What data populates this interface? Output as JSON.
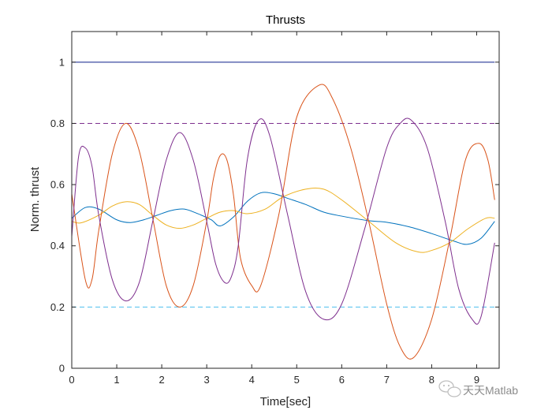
{
  "chart_data": {
    "type": "line",
    "title": "Thrusts",
    "xlabel": "Time[sec]",
    "ylabel": "Norm. thrust",
    "xlim": [
      0,
      9.5
    ],
    "ylim": [
      0,
      1.1
    ],
    "xticks": [
      "0",
      "1",
      "2",
      "3",
      "4",
      "5",
      "6",
      "7",
      "8",
      "9"
    ],
    "yticks": [
      "0",
      "0.2",
      "0.4",
      "0.6",
      "0.8",
      "1"
    ],
    "grid": false,
    "reference_lines": [
      {
        "y": 1.0,
        "color": "#0c1f8a",
        "style": "solid"
      },
      {
        "y": 0.8,
        "color": "#7e2f8e",
        "style": "dashed"
      },
      {
        "y": 0.2,
        "color": "#4dbeee",
        "style": "dashed"
      }
    ],
    "series": [
      {
        "color": "#0072bd",
        "x": [
          0,
          0.3,
          0.6,
          1.0,
          1.3,
          1.6,
          1.9,
          2.2,
          2.5,
          2.8,
          3.1,
          3.3,
          3.6,
          3.9,
          4.2,
          4.5,
          4.8,
          5.2,
          5.6,
          6.0,
          6.6,
          7.0,
          7.5,
          8.0,
          8.5,
          8.8,
          9.1,
          9.4
        ],
        "y": [
          0.49,
          0.525,
          0.52,
          0.485,
          0.476,
          0.485,
          0.5,
          0.515,
          0.52,
          0.505,
          0.485,
          0.465,
          0.495,
          0.545,
          0.573,
          0.57,
          0.555,
          0.535,
          0.51,
          0.497,
          0.482,
          0.477,
          0.462,
          0.44,
          0.415,
          0.405,
          0.425,
          0.48
        ]
      },
      {
        "color": "#edb120",
        "x": [
          0,
          0.2,
          0.6,
          0.9,
          1.2,
          1.5,
          1.8,
          2.1,
          2.4,
          2.7,
          3.0,
          3.3,
          3.6,
          3.9,
          4.3,
          4.7,
          5.2,
          5.6,
          6.0,
          6.6,
          7.2,
          7.7,
          8.0,
          8.4,
          8.8,
          9.2,
          9.4
        ],
        "y": [
          0.48,
          0.475,
          0.5,
          0.53,
          0.544,
          0.535,
          0.5,
          0.468,
          0.457,
          0.468,
          0.49,
          0.51,
          0.515,
          0.505,
          0.52,
          0.56,
          0.585,
          0.585,
          0.55,
          0.48,
          0.41,
          0.38,
          0.385,
          0.41,
          0.455,
          0.49,
          0.49
        ]
      },
      {
        "color": "#d95319",
        "x": [
          0,
          0.3,
          0.45,
          0.6,
          0.9,
          1.2,
          1.5,
          1.8,
          2.1,
          2.4,
          2.7,
          3.0,
          3.15,
          3.3,
          3.45,
          3.6,
          3.75,
          4.0,
          4.2,
          4.6,
          5.0,
          5.5,
          5.8,
          6.2,
          6.6,
          7.0,
          7.3,
          7.6,
          8.0,
          8.4,
          8.75,
          9.05,
          9.25,
          9.4
        ],
        "y": [
          0.57,
          0.29,
          0.29,
          0.45,
          0.7,
          0.8,
          0.71,
          0.49,
          0.27,
          0.2,
          0.27,
          0.48,
          0.62,
          0.695,
          0.68,
          0.56,
          0.36,
          0.27,
          0.27,
          0.5,
          0.82,
          0.925,
          0.88,
          0.72,
          0.48,
          0.21,
          0.07,
          0.035,
          0.16,
          0.42,
          0.68,
          0.735,
          0.68,
          0.55
        ]
      },
      {
        "color": "#7e2f8e",
        "x": [
          0,
          0.15,
          0.3,
          0.45,
          0.6,
          0.9,
          1.2,
          1.5,
          1.8,
          2.1,
          2.4,
          2.7,
          3.0,
          3.2,
          3.4,
          3.55,
          3.7,
          3.9,
          4.15,
          4.4,
          4.8,
          5.2,
          5.6,
          6.0,
          6.5,
          7.0,
          7.3,
          7.55,
          7.9,
          8.3,
          8.6,
          8.9,
          9.1,
          9.4
        ],
        "y": [
          0.43,
          0.69,
          0.72,
          0.66,
          0.5,
          0.29,
          0.22,
          0.28,
          0.48,
          0.68,
          0.77,
          0.68,
          0.48,
          0.34,
          0.28,
          0.3,
          0.4,
          0.68,
          0.81,
          0.76,
          0.5,
          0.25,
          0.16,
          0.21,
          0.45,
          0.72,
          0.8,
          0.81,
          0.72,
          0.48,
          0.26,
          0.16,
          0.17,
          0.41
        ]
      }
    ]
  },
  "watermark": {
    "text": "天天Matlab",
    "icon": "wechat-icon"
  }
}
